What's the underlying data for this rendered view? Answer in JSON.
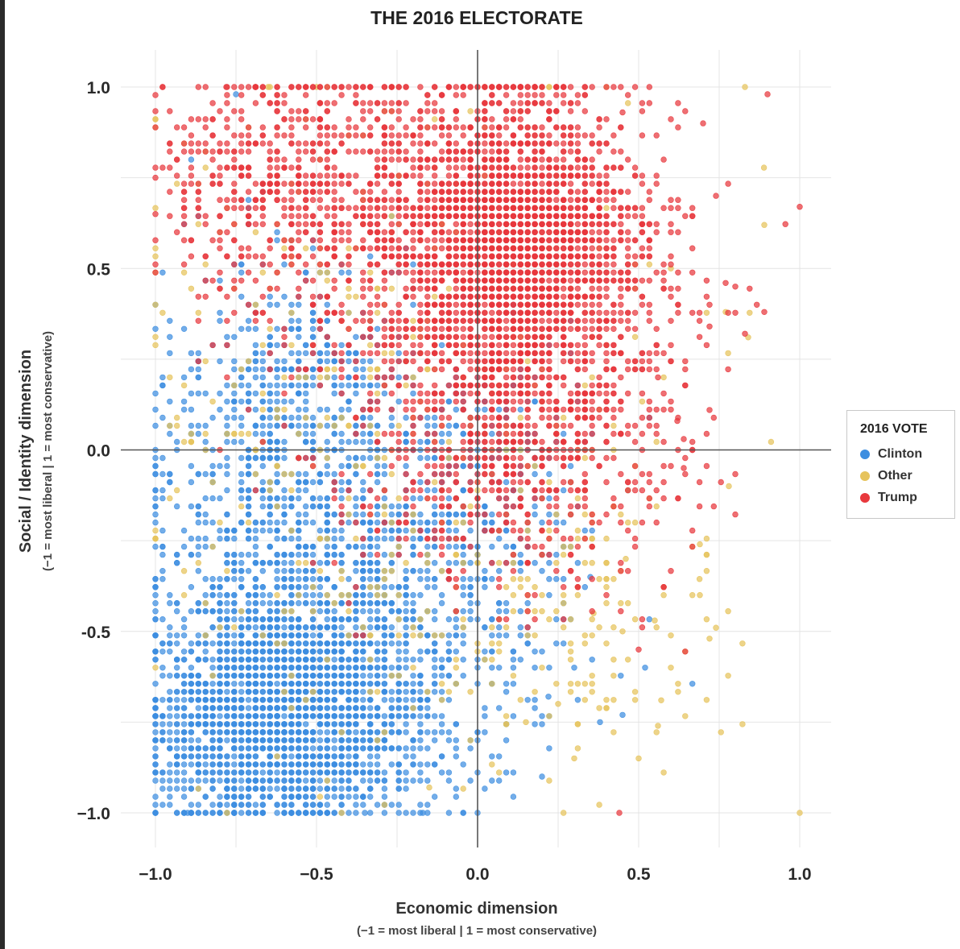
{
  "chart_data": {
    "type": "scatter",
    "title": "THE 2016 ELECTORATE",
    "xlabel": "Economic dimension",
    "xlabel_sub": "(−1 = most liberal | 1 = most conservative)",
    "ylabel": "Social / Identity dimension",
    "ylabel_sub": "(−1 = most liberal | 1 = most conservative)",
    "xlim": [
      -1.0,
      1.0
    ],
    "ylim": [
      -1.0,
      1.0
    ],
    "xticks": [
      "−1.0",
      "−0.5",
      "0.0",
      "0.5",
      "1.0"
    ],
    "yticks": [
      "1.0",
      "0.5",
      "0.0",
      "-0.5",
      "−1.0"
    ],
    "grid": true,
    "legend": {
      "title": "2016 VOTE",
      "placement": "right",
      "entries": [
        "Clinton",
        "Other",
        "Trump"
      ]
    },
    "series": [
      {
        "name": "Clinton",
        "color": "#3d8ee0",
        "clusters": [
          {
            "cx": -0.62,
            "cy": -0.72,
            "sx": 0.2,
            "sy": 0.17,
            "n": 2300
          },
          {
            "cx": -0.55,
            "cy": -0.35,
            "sx": 0.28,
            "sy": 0.28,
            "n": 900
          },
          {
            "cx": -0.6,
            "cy": 0.15,
            "sx": 0.22,
            "sy": 0.22,
            "n": 500
          },
          {
            "cx": -0.15,
            "cy": -0.45,
            "sx": 0.22,
            "sy": 0.3,
            "n": 450
          },
          {
            "cx": 0.05,
            "cy": -0.1,
            "sx": 0.15,
            "sy": 0.2,
            "n": 200
          }
        ],
        "points": [
          [
            -1.0,
            -1.0
          ],
          [
            -0.9,
            -1.0
          ],
          [
            -1.0,
            0.4
          ],
          [
            -0.75,
            0.98
          ],
          [
            0.2,
            -0.9
          ],
          [
            0.38,
            -0.75
          ],
          [
            0.45,
            -0.73
          ],
          [
            0.52,
            -0.6
          ],
          [
            0.35,
            -0.35
          ],
          [
            0.22,
            -0.68
          ],
          [
            0.0,
            -1.0
          ],
          [
            -0.35,
            -1.0
          ],
          [
            -0.17,
            -1.0
          ],
          [
            0.3,
            -0.6
          ]
        ]
      },
      {
        "name": "Other",
        "color": "#e6c35c",
        "clusters": [
          {
            "cx": -0.3,
            "cy": 0.05,
            "sx": 0.45,
            "sy": 0.5,
            "n": 500
          },
          {
            "cx": 0.3,
            "cy": -0.4,
            "sx": 0.22,
            "sy": 0.25,
            "n": 150
          }
        ],
        "points": [
          [
            0.83,
            1.0
          ],
          [
            0.89,
            0.62
          ],
          [
            0.84,
            0.31
          ],
          [
            1.0,
            -1.0
          ],
          [
            0.78,
            -0.1
          ],
          [
            0.74,
            -0.49
          ],
          [
            0.72,
            -0.52
          ],
          [
            0.69,
            -0.4
          ],
          [
            0.69,
            -0.26
          ],
          [
            0.56,
            -0.76
          ],
          [
            0.57,
            -0.69
          ],
          [
            0.55,
            -0.47
          ],
          [
            0.46,
            -0.3
          ],
          [
            0.36,
            -0.45
          ],
          [
            0.77,
            0.38
          ],
          [
            0.6,
            0.5
          ],
          [
            0.5,
            -0.85
          ],
          [
            0.3,
            -0.85
          ],
          [
            0.15,
            -0.75
          ],
          [
            -0.15,
            -0.93
          ],
          [
            -0.5,
            1.0
          ],
          [
            -0.65,
            1.0
          ],
          [
            0.45,
            -0.5
          ],
          [
            0.25,
            -0.7
          ]
        ]
      },
      {
        "name": "Trump",
        "color": "#e8383d",
        "clusters": [
          {
            "cx": 0.12,
            "cy": 0.58,
            "sx": 0.17,
            "sy": 0.2,
            "n": 1800
          },
          {
            "cx": -0.05,
            "cy": 0.55,
            "sx": 0.32,
            "sy": 0.32,
            "n": 1300
          },
          {
            "cx": -0.6,
            "cy": 0.75,
            "sx": 0.22,
            "sy": 0.18,
            "n": 500
          },
          {
            "cx": 0.25,
            "cy": 0.1,
            "sx": 0.22,
            "sy": 0.25,
            "n": 600
          },
          {
            "cx": -0.1,
            "cy": -0.1,
            "sx": 0.2,
            "sy": 0.12,
            "n": 150
          }
        ],
        "points": [
          [
            1.0,
            0.67
          ],
          [
            0.89,
            0.38
          ],
          [
            0.83,
            0.32
          ],
          [
            0.77,
            0.46
          ],
          [
            0.74,
            0.7
          ],
          [
            0.72,
            0.4
          ],
          [
            0.72,
            0.34
          ],
          [
            0.72,
            0.11
          ],
          [
            0.64,
            0.03
          ],
          [
            0.64,
            -0.05
          ],
          [
            0.62,
            0.08
          ],
          [
            0.56,
            0.2
          ],
          [
            0.45,
            0.93
          ],
          [
            0.44,
            -1.0
          ],
          [
            0.8,
            0.45
          ],
          [
            0.7,
            0.9
          ],
          [
            0.9,
            0.98
          ],
          [
            -0.78,
            1.0
          ],
          [
            -0.69,
            1.0
          ],
          [
            -1.0,
            0.65
          ],
          [
            -1.0,
            0.75
          ],
          [
            0.5,
            -0.55
          ]
        ]
      }
    ]
  }
}
